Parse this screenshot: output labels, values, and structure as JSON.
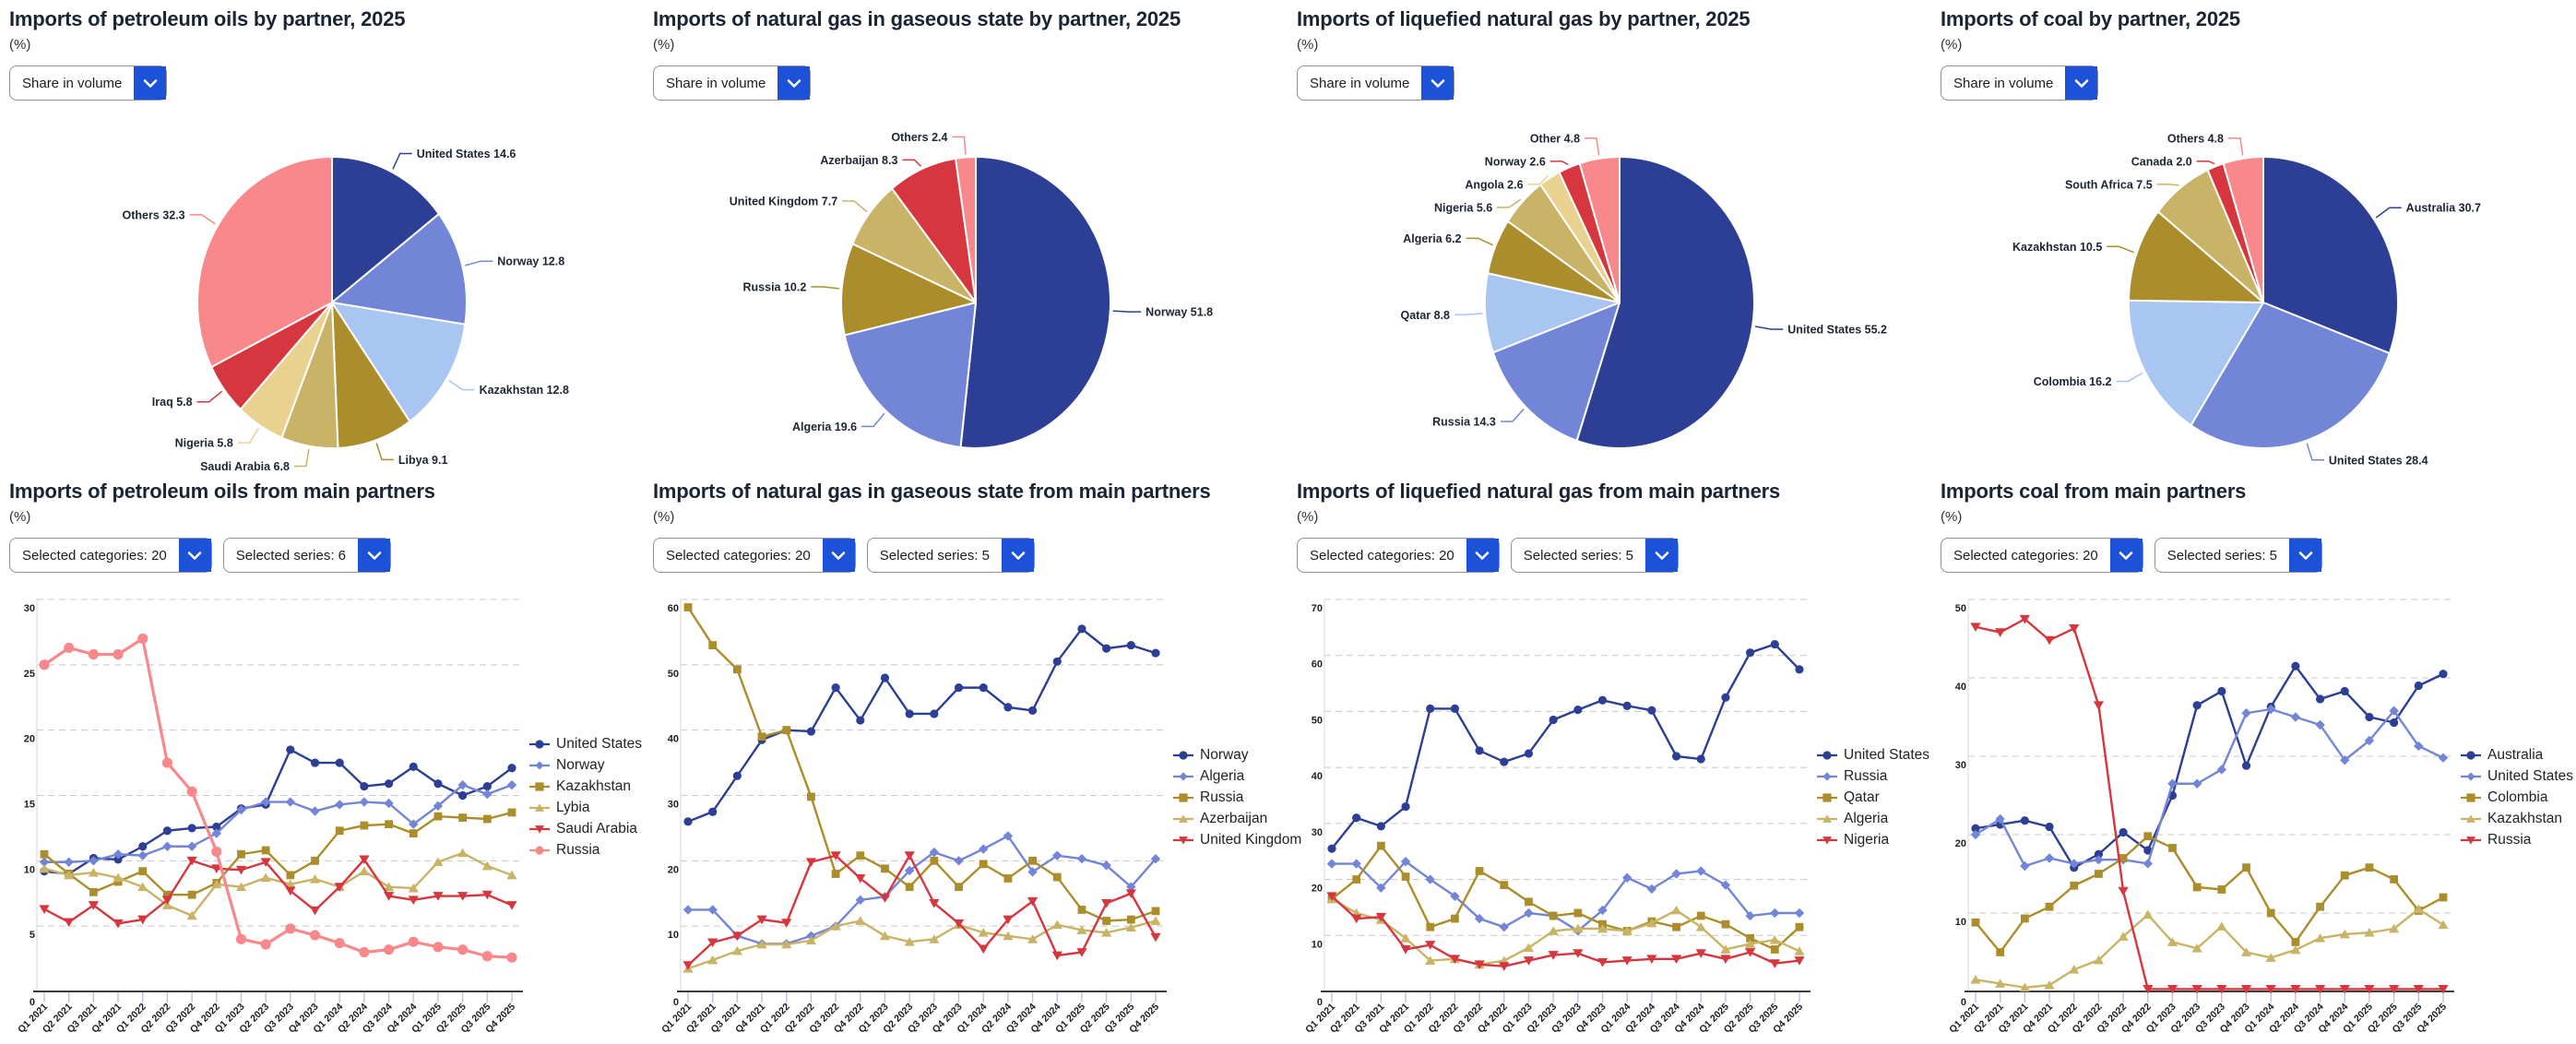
{
  "controls": {
    "share_selector": "Share in volume"
  },
  "palette": {
    "dark_blue": "#2c3f94",
    "periwinkle": "#7285d6",
    "light_blue": "#a9c5f2",
    "dark_gold": "#ac8d2b",
    "khaki": "#c9b366",
    "tan": "#e9d18f",
    "red": "#d6373f",
    "salmon": "#f8888c",
    "dropdown_blue": "#1b52d8"
  },
  "chart_data": [
    {
      "id": "pie-petroleum",
      "type": "pie",
      "title": "Imports of petroleum oils by partner, 2025",
      "unit": "(%)",
      "selector": "Share in volume",
      "labels": [
        "United States",
        "Norway",
        "Kazakhstan",
        "Libya",
        "Saudi Arabia",
        "Nigeria",
        "Iraq",
        "Others"
      ],
      "values": [
        14.6,
        12.8,
        12.8,
        9.1,
        6.8,
        5.8,
        5.8,
        32.3
      ],
      "colors": [
        "#2c3f94",
        "#7285d6",
        "#a9c5f2",
        "#ac8d2b",
        "#c9b366",
        "#e9d18f",
        "#d6373f",
        "#f8888c"
      ]
    },
    {
      "id": "line-petroleum",
      "type": "line",
      "title": "Imports of petroleum oils from main partners",
      "unit": "(%)",
      "selectors": [
        "Selected categories: 20",
        "Selected series: 6"
      ],
      "x": [
        "Q1 2021",
        "Q2 2021",
        "Q3 2021",
        "Q4 2021",
        "Q1 2022",
        "Q2 2022",
        "Q3 2022",
        "Q4 2022",
        "Q1 2023",
        "Q2 2023",
        "Q3 2023",
        "Q4 2023",
        "Q1 2024",
        "Q2 2024",
        "Q3 2024",
        "Q4 2024",
        "Q1 2025",
        "Q2 2025",
        "Q3 2025",
        "Q4 2025"
      ],
      "ylim": [
        0,
        30
      ],
      "ytick_step": 5,
      "grid": "dashed-horizontal",
      "legend_position": "right",
      "series": [
        {
          "name": "United States",
          "color": "#2c3f94",
          "marker": "circle",
          "thick": false,
          "values": [
            9.2,
            9.0,
            10.2,
            10.1,
            11.1,
            12.3,
            12.5,
            12.6,
            14.0,
            14.3,
            18.5,
            17.5,
            17.5,
            15.7,
            15.9,
            17.2,
            15.9,
            15.0,
            15.7,
            17.1
          ]
        },
        {
          "name": "Norway",
          "color": "#7285d6",
          "marker": "diamond",
          "thick": false,
          "values": [
            9.9,
            9.9,
            10.0,
            10.5,
            10.4,
            11.1,
            11.1,
            12.1,
            13.9,
            14.5,
            14.5,
            13.8,
            14.3,
            14.5,
            14.4,
            12.8,
            14.2,
            15.8,
            15.1,
            15.8
          ]
        },
        {
          "name": "Kazakhstan",
          "color": "#ac8d2b",
          "marker": "square",
          "thick": false,
          "values": [
            10.5,
            9.0,
            7.6,
            8.4,
            9.2,
            7.4,
            7.4,
            8.3,
            10.5,
            10.8,
            8.9,
            10.0,
            12.3,
            12.7,
            12.8,
            12.1,
            13.4,
            13.3,
            13.2,
            13.7
          ]
        },
        {
          "name": "Lybia",
          "color": "#c9b366",
          "marker": "triangle",
          "thick": false,
          "values": [
            9.4,
            8.9,
            9.1,
            8.7,
            8.0,
            6.6,
            5.8,
            8.2,
            8.0,
            8.7,
            8.2,
            8.6,
            8.0,
            9.2,
            8.0,
            7.9,
            9.9,
            10.6,
            9.6,
            8.9
          ]
        },
        {
          "name": "Saudi Arabia",
          "color": "#d6373f",
          "marker": "triangle-down",
          "thick": false,
          "values": [
            6.3,
            5.3,
            6.6,
            5.2,
            5.5,
            7.0,
            10.0,
            9.4,
            9.3,
            9.9,
            7.7,
            6.2,
            8.0,
            10.1,
            7.3,
            7.0,
            7.3,
            7.3,
            7.4,
            6.6
          ]
        },
        {
          "name": "Russia",
          "color": "#f8888c",
          "marker": "circle",
          "thick": true,
          "values": [
            25.0,
            26.3,
            25.8,
            25.8,
            27.0,
            17.5,
            15.3,
            10.7,
            4.0,
            3.6,
            4.8,
            4.3,
            3.7,
            3.0,
            3.2,
            3.8,
            3.4,
            3.2,
            2.7,
            2.6
          ]
        }
      ]
    },
    {
      "id": "pie-natural-gas",
      "type": "pie",
      "title": "Imports of natural gas in gaseous state by partner, 2025",
      "unit": "(%)",
      "selector": "Share in volume",
      "labels": [
        "Norway",
        "Algeria",
        "Russia",
        "United Kingdom",
        "Azerbaijan",
        "Others"
      ],
      "values": [
        51.8,
        19.6,
        10.2,
        7.7,
        8.3,
        2.4
      ],
      "colors": [
        "#2c3f94",
        "#7285d6",
        "#ac8d2b",
        "#c9b366",
        "#d6373f",
        "#f8888c"
      ]
    },
    {
      "id": "line-natural-gas",
      "type": "line",
      "title": "Imports of natural gas in gaseous state from main partners",
      "unit": "(%)",
      "selectors": [
        "Selected categories: 20",
        "Selected series: 5"
      ],
      "x": [
        "Q1 2021",
        "Q2 2021",
        "Q3 2021",
        "Q4 2021",
        "Q1 2022",
        "Q2 2022",
        "Q3 2022",
        "Q4 2022",
        "Q1 2023",
        "Q2 2023",
        "Q3 2023",
        "Q4 2023",
        "Q1 2024",
        "Q2 2024",
        "Q3 2024",
        "Q4 2024",
        "Q1 2025",
        "Q2 2025",
        "Q3 2025",
        "Q4 2025"
      ],
      "ylim": [
        0,
        60
      ],
      "ytick_step": 10,
      "grid": "dashed-horizontal",
      "legend_position": "right",
      "series": [
        {
          "name": "Norway",
          "color": "#2c3f94",
          "marker": "circle",
          "thick": false,
          "values": [
            26.0,
            27.5,
            33.0,
            38.5,
            40.0,
            39.8,
            46.5,
            41.5,
            48.0,
            42.5,
            42.5,
            46.5,
            46.5,
            43.5,
            43.0,
            50.5,
            55.5,
            52.5,
            53.0,
            51.8
          ]
        },
        {
          "name": "Algeria",
          "color": "#7285d6",
          "marker": "diamond",
          "thick": false,
          "values": [
            12.5,
            12.5,
            8.5,
            7.3,
            7.3,
            8.5,
            10.0,
            14.0,
            14.5,
            18.5,
            21.3,
            20.0,
            21.8,
            23.8,
            18.3,
            20.8,
            20.3,
            19.3,
            16.0,
            20.3
          ]
        },
        {
          "name": "Russia",
          "color": "#ac8d2b",
          "marker": "square",
          "thick": false,
          "values": [
            58.8,
            53.0,
            49.3,
            39.0,
            40.0,
            29.8,
            18.0,
            20.8,
            18.8,
            16.0,
            20.0,
            16.0,
            19.5,
            17.3,
            20.0,
            17.5,
            12.5,
            10.8,
            11.0,
            12.3
          ]
        },
        {
          "name": "Azerbaijan",
          "color": "#c9b366",
          "marker": "triangle",
          "thick": false,
          "values": [
            3.5,
            4.8,
            6.2,
            7.2,
            7.2,
            7.8,
            10.0,
            10.8,
            8.5,
            7.6,
            8.0,
            10.2,
            9.0,
            8.5,
            8.0,
            10.2,
            9.4,
            9.0,
            9.8,
            10.8
          ]
        },
        {
          "name": "United Kingdom",
          "color": "#d6373f",
          "marker": "triangle-down",
          "thick": false,
          "values": [
            4.0,
            7.5,
            8.5,
            11.0,
            10.5,
            19.8,
            20.8,
            17.3,
            14.3,
            20.8,
            13.5,
            10.4,
            6.5,
            11.0,
            13.8,
            5.5,
            6.0,
            13.5,
            15.0,
            8.3
          ]
        }
      ]
    },
    {
      "id": "pie-lng",
      "type": "pie",
      "title": "Imports of liquefied natural gas by partner, 2025",
      "unit": "(%)",
      "selector": "Share in volume",
      "labels": [
        "United States",
        "Russia",
        "Qatar",
        "Algeria",
        "Nigeria",
        "Angola",
        "Norway",
        "Other"
      ],
      "values": [
        55.2,
        14.3,
        8.8,
        6.2,
        5.6,
        2.6,
        2.6,
        4.8
      ],
      "colors": [
        "#2c3f94",
        "#7285d6",
        "#a9c5f2",
        "#ac8d2b",
        "#c9b366",
        "#e9d18f",
        "#d6373f",
        "#f8888c"
      ]
    },
    {
      "id": "line-lng",
      "type": "line",
      "title": "Imports of liquefied natural gas from main partners",
      "unit": "(%)",
      "selectors": [
        "Selected categories: 20",
        "Selected series: 5"
      ],
      "x": [
        "Q1 2021",
        "Q2 2021",
        "Q3 2021",
        "Q4 2021",
        "Q1 2022",
        "Q2 2022",
        "Q3 2022",
        "Q4 2022",
        "Q1 2023",
        "Q2 2023",
        "Q3 2023",
        "Q4 2023",
        "Q1 2024",
        "Q2 2024",
        "Q3 2024",
        "Q4 2024",
        "Q1 2025",
        "Q2 2025",
        "Q3 2025",
        "Q4 2025"
      ],
      "ylim": [
        0,
        70
      ],
      "ytick_step": 10,
      "grid": "dashed-horizontal",
      "legend_position": "right",
      "series": [
        {
          "name": "United States",
          "color": "#2c3f94",
          "marker": "circle",
          "thick": false,
          "values": [
            25.5,
            31.0,
            29.5,
            33.0,
            50.5,
            50.5,
            43.0,
            41.0,
            42.5,
            48.5,
            50.3,
            52.0,
            51.0,
            50.2,
            42.0,
            41.5,
            52.5,
            60.5,
            62.0,
            57.5
          ]
        },
        {
          "name": "Russia",
          "color": "#7285d6",
          "marker": "diamond",
          "thick": false,
          "values": [
            22.8,
            22.8,
            18.5,
            23.2,
            20.0,
            17.0,
            13.0,
            11.5,
            14.0,
            13.5,
            10.8,
            14.5,
            20.3,
            18.3,
            21.0,
            21.5,
            19.0,
            13.5,
            14.0,
            14.0
          ]
        },
        {
          "name": "Qatar",
          "color": "#ac8d2b",
          "marker": "square",
          "thick": false,
          "values": [
            16.5,
            20.0,
            26.0,
            20.5,
            11.5,
            13.0,
            21.5,
            19.0,
            16.0,
            13.5,
            14.0,
            12.0,
            10.8,
            12.5,
            11.5,
            13.5,
            12.0,
            9.5,
            7.5,
            11.5
          ]
        },
        {
          "name": "Algeria",
          "color": "#c9b366",
          "marker": "triangle",
          "thick": false,
          "values": [
            16.5,
            14.0,
            12.8,
            9.5,
            5.5,
            5.8,
            4.8,
            5.5,
            7.8,
            10.8,
            11.2,
            11.2,
            10.8,
            12.2,
            14.5,
            11.5,
            7.5,
            8.5,
            9.2,
            7.2
          ]
        },
        {
          "name": "Nigeria",
          "color": "#d6373f",
          "marker": "triangle-down",
          "thick": false,
          "values": [
            17.0,
            13.0,
            13.3,
            7.5,
            8.3,
            5.8,
            4.8,
            4.5,
            5.5,
            6.5,
            6.8,
            5.2,
            5.5,
            5.8,
            5.8,
            6.8,
            5.8,
            7.0,
            5.0,
            5.5
          ]
        }
      ]
    },
    {
      "id": "pie-coal",
      "type": "pie",
      "title": "Imports of coal by partner, 2025",
      "unit": "(%)",
      "selector": "Share in volume",
      "labels": [
        "Australia",
        "United States",
        "Colombia",
        "Kazakhstan",
        "South Africa",
        "Canada",
        "Others"
      ],
      "values": [
        30.7,
        28.4,
        16.2,
        10.5,
        7.5,
        2.0,
        4.8
      ],
      "colors": [
        "#2c3f94",
        "#7285d6",
        "#a9c5f2",
        "#ac8d2b",
        "#c9b366",
        "#d6373f",
        "#f8888c"
      ]
    },
    {
      "id": "line-coal",
      "type": "line",
      "title": "Imports coal from main partners",
      "unit": "(%)",
      "selectors": [
        "Selected categories: 20",
        "Selected series: 5"
      ],
      "x": [
        "Q1 2021",
        "Q2 2021",
        "Q3 2021",
        "Q4 2021",
        "Q1 2022",
        "Q2 2022",
        "Q3 2022",
        "Q4 2022",
        "Q1 2023",
        "Q2 2023",
        "Q3 2023",
        "Q4 2023",
        "Q1 2024",
        "Q2 2024",
        "Q3 2024",
        "Q4 2024",
        "Q1 2025",
        "Q2 2025",
        "Q3 2025",
        "Q4 2025"
      ],
      "ylim": [
        0,
        50
      ],
      "ytick_step": 10,
      "grid": "dashed-horizontal",
      "legend_position": "right",
      "series": [
        {
          "name": "Australia",
          "color": "#2c3f94",
          "marker": "circle",
          "thick": false,
          "values": [
            20.8,
            21.3,
            21.8,
            21.0,
            15.8,
            17.5,
            20.3,
            18.0,
            25.0,
            36.5,
            38.3,
            28.8,
            36.3,
            41.5,
            37.3,
            38.3,
            35.0,
            34.3,
            39.0,
            40.5
          ]
        },
        {
          "name": "United States",
          "color": "#7285d6",
          "marker": "diamond",
          "thick": false,
          "values": [
            20.0,
            22.0,
            16.0,
            17.0,
            16.3,
            16.8,
            16.8,
            16.3,
            26.5,
            26.5,
            28.3,
            35.5,
            36.0,
            35.0,
            34.0,
            29.5,
            32.0,
            35.8,
            31.3,
            29.8
          ]
        },
        {
          "name": "Colombia",
          "color": "#ac8d2b",
          "marker": "square",
          "thick": false,
          "values": [
            8.8,
            5.0,
            9.3,
            10.8,
            13.5,
            15.0,
            17.0,
            19.8,
            18.3,
            13.3,
            13.0,
            15.8,
            10.0,
            6.3,
            10.8,
            14.8,
            15.8,
            14.3,
            10.3,
            12.0
          ]
        },
        {
          "name": "Kazakhstan",
          "color": "#c9b366",
          "marker": "triangle",
          "thick": false,
          "values": [
            1.5,
            1.0,
            0.5,
            0.8,
            2.8,
            4.0,
            7.0,
            9.8,
            6.3,
            5.5,
            8.3,
            5.0,
            4.3,
            5.3,
            6.8,
            7.3,
            7.5,
            8.0,
            10.5,
            8.5
          ]
        },
        {
          "name": "Russia",
          "color": "#d6373f",
          "marker": "triangle-down",
          "thick": false,
          "values": [
            46.5,
            45.8,
            47.5,
            44.8,
            46.3,
            36.5,
            12.8,
            0.3,
            0.3,
            0.3,
            0.3,
            0.3,
            0.3,
            0.3,
            0.3,
            0.3,
            0.3,
            0.3,
            0.3,
            0.3
          ]
        }
      ]
    }
  ]
}
